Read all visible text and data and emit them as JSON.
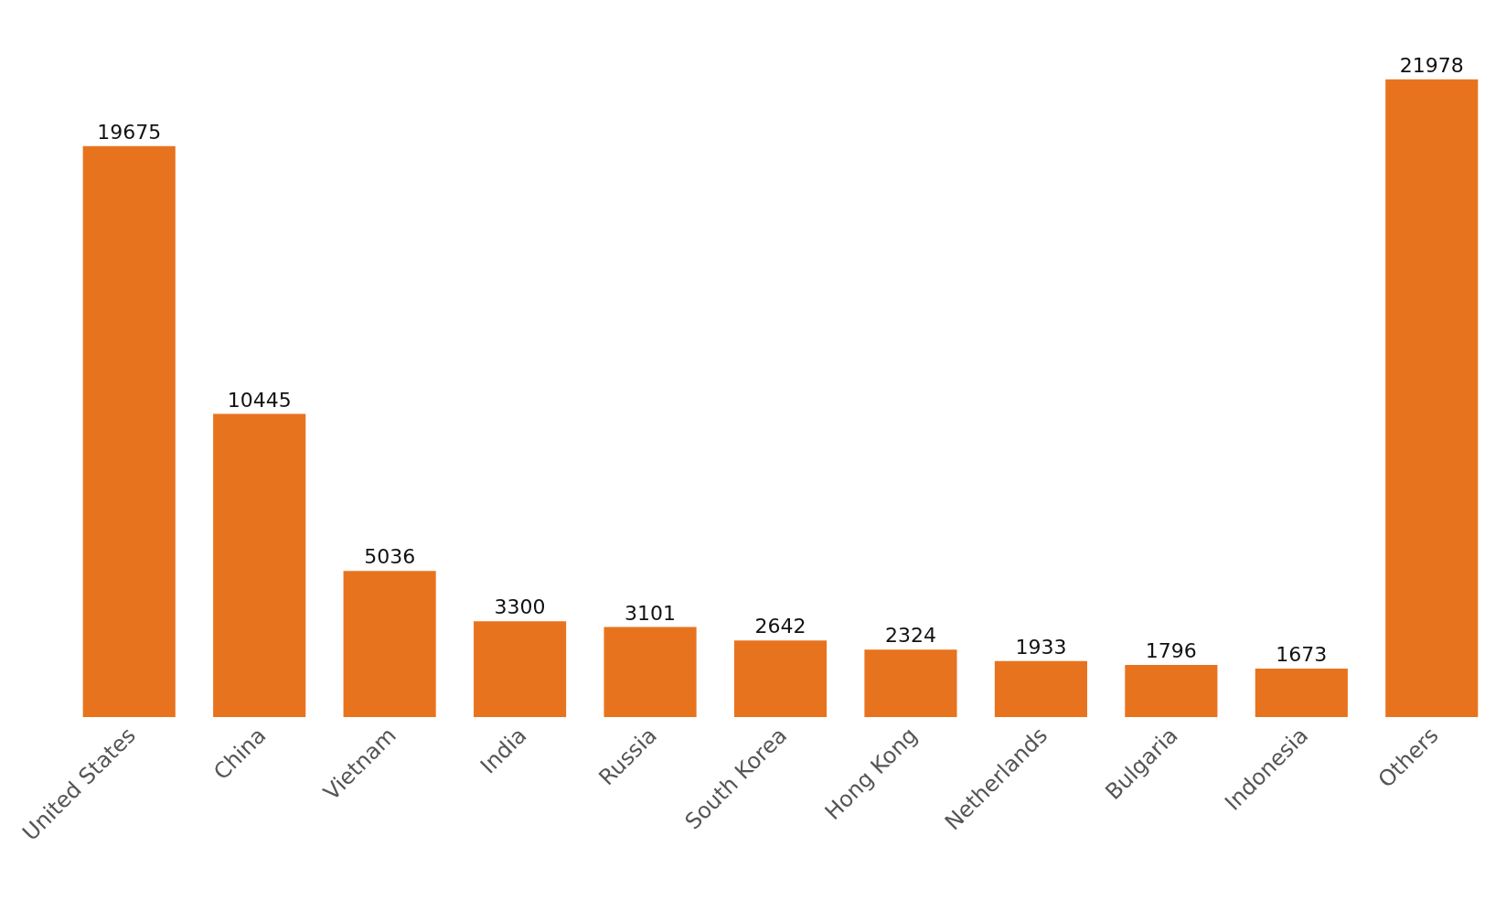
{
  "chart_data": {
    "type": "bar",
    "categories": [
      "United States",
      "China",
      "Vietnam",
      "India",
      "Russia",
      "South Korea",
      "Hong Kong",
      "Netherlands",
      "Bulgaria",
      "Indonesia",
      "Others"
    ],
    "values": [
      19675,
      10445,
      5036,
      3300,
      3101,
      2642,
      2324,
      1933,
      1796,
      1673,
      21978
    ],
    "color": "#e8731e",
    "data_labels": true
  }
}
